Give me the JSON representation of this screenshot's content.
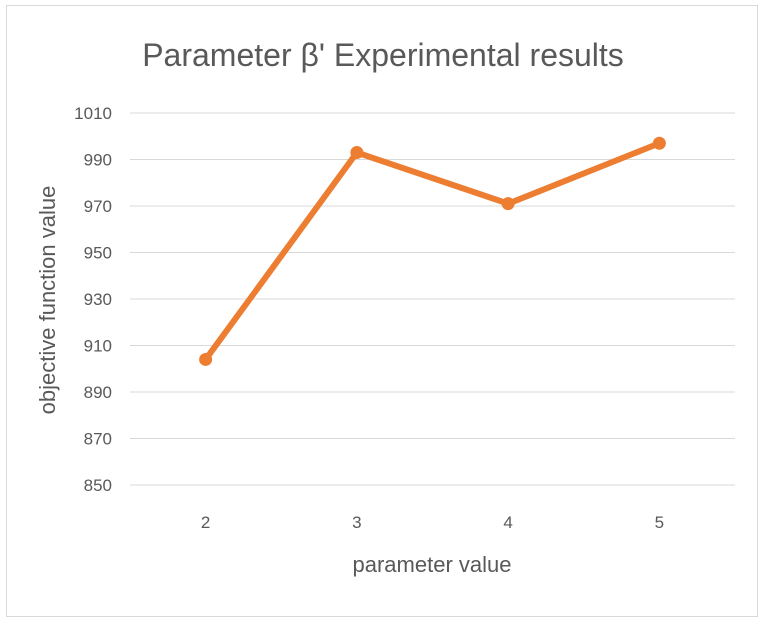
{
  "chart_data": {
    "type": "line",
    "title": "Parameter β' Experimental results",
    "xlabel": "parameter value",
    "ylabel": "objective function value",
    "categories": [
      "2",
      "3",
      "4",
      "5"
    ],
    "series": [
      {
        "values": [
          904,
          993,
          971,
          997
        ],
        "color": "#ed7d31"
      }
    ],
    "ylim": [
      850,
      1010
    ],
    "yticks": [
      850,
      870,
      890,
      910,
      930,
      950,
      970,
      990,
      1010
    ],
    "grid": true,
    "legend": "none"
  }
}
